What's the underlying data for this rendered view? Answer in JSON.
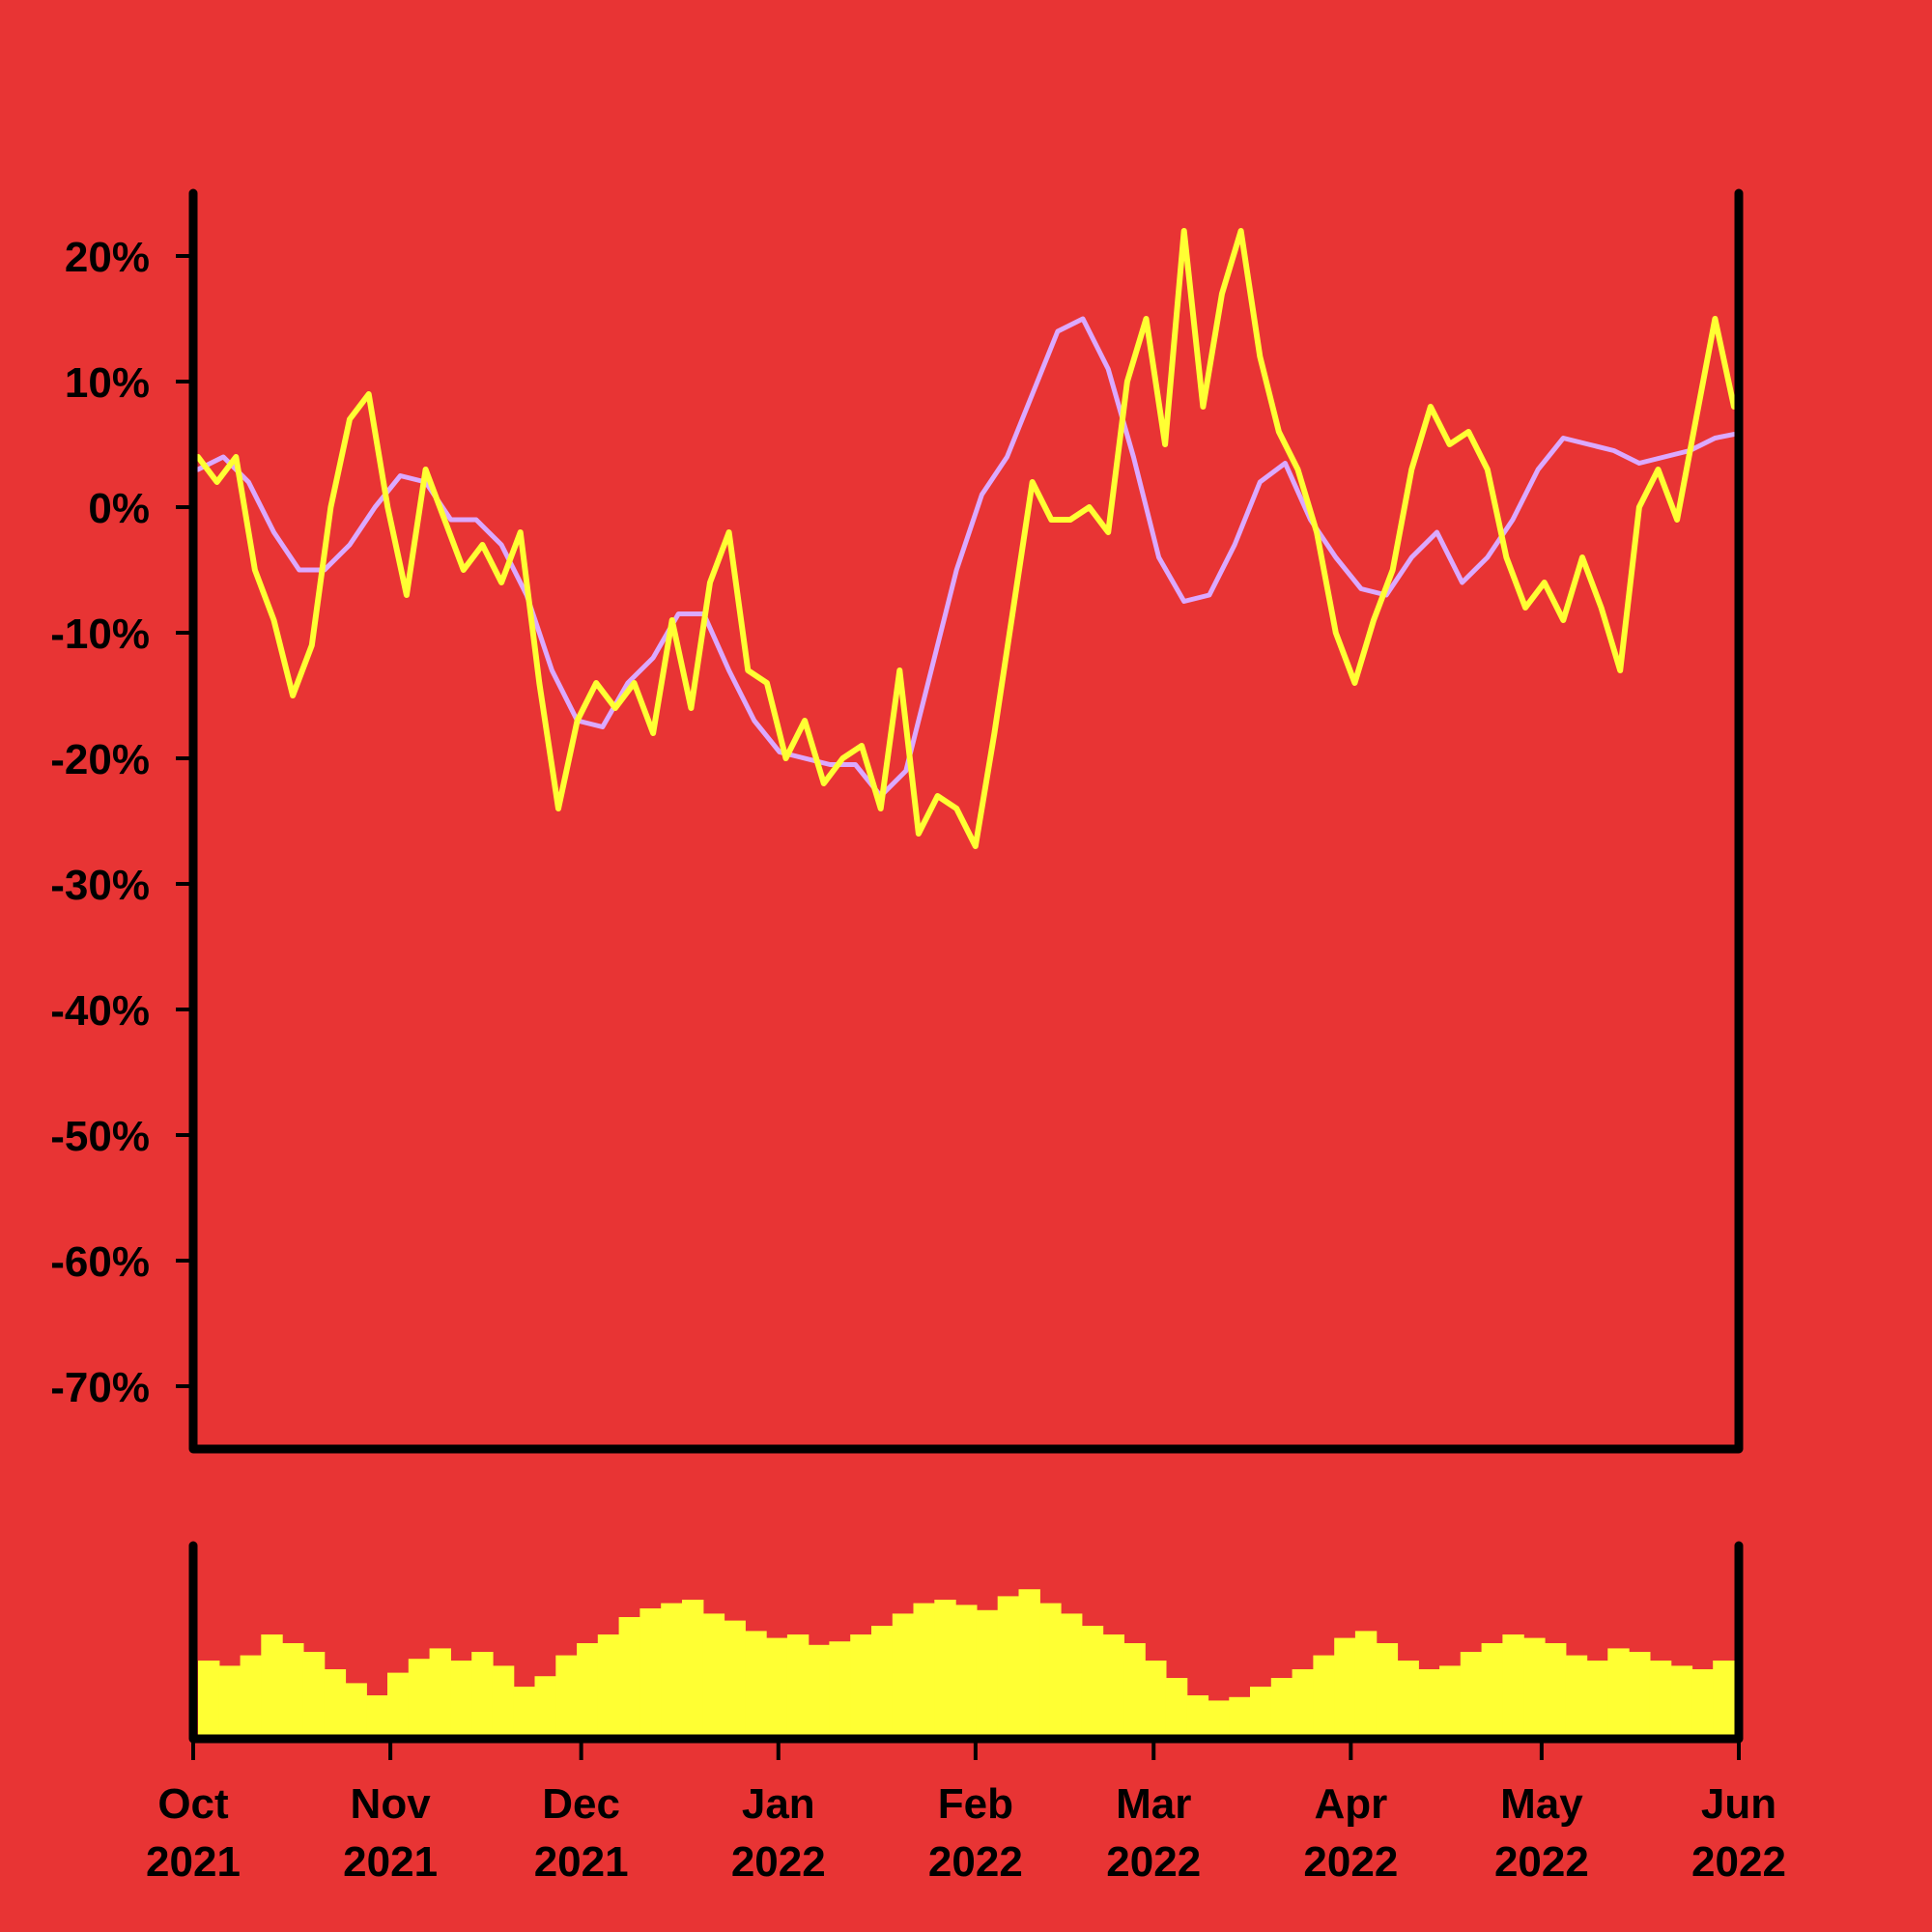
{
  "chart_data": [
    {
      "type": "line",
      "x_axis_type": "date",
      "y_format": "percent",
      "ylim": [
        -75,
        25
      ],
      "yticks": [
        20,
        10,
        0,
        -10,
        -20,
        -30,
        -40,
        -50,
        -60,
        -70
      ],
      "ytick_labels": [
        "20%",
        "10%",
        "0%",
        "-10%",
        "-20%",
        "-30%",
        "-40%",
        "-50%",
        "-60%",
        "-70%"
      ],
      "xlim": [
        "2021-10-01",
        "2022-06-01"
      ],
      "grid": false,
      "series": [
        {
          "style": "raw",
          "color": "#ffff33",
          "x": [
            "2021-10-01",
            "2021-10-04",
            "2021-10-07",
            "2021-10-10",
            "2021-10-13",
            "2021-10-16",
            "2021-10-19",
            "2021-10-22",
            "2021-10-25",
            "2021-10-28",
            "2021-10-31",
            "2021-11-03",
            "2021-11-06",
            "2021-11-09",
            "2021-11-12",
            "2021-11-15",
            "2021-11-18",
            "2021-11-21",
            "2021-11-24",
            "2021-11-27",
            "2021-11-30",
            "2021-12-03",
            "2021-12-06",
            "2021-12-09",
            "2021-12-12",
            "2021-12-15",
            "2021-12-18",
            "2021-12-21",
            "2021-12-24",
            "2021-12-27",
            "2021-12-30",
            "2022-01-02",
            "2022-01-05",
            "2022-01-08",
            "2022-01-11",
            "2022-01-14",
            "2022-01-17",
            "2022-01-20",
            "2022-01-23",
            "2022-01-26",
            "2022-01-29",
            "2022-02-01",
            "2022-02-04",
            "2022-02-07",
            "2022-02-10",
            "2022-02-13",
            "2022-02-16",
            "2022-02-19",
            "2022-02-22",
            "2022-02-25",
            "2022-02-28",
            "2022-03-03",
            "2022-03-06",
            "2022-03-09",
            "2022-03-12",
            "2022-03-15",
            "2022-03-18",
            "2022-03-21",
            "2022-03-24",
            "2022-03-27",
            "2022-03-30",
            "2022-04-02",
            "2022-04-05",
            "2022-04-08",
            "2022-04-11",
            "2022-04-14",
            "2022-04-17",
            "2022-04-20",
            "2022-04-23",
            "2022-04-26",
            "2022-04-29",
            "2022-05-02",
            "2022-05-05",
            "2022-05-08",
            "2022-05-11",
            "2022-05-14",
            "2022-05-17",
            "2022-05-20",
            "2022-05-23",
            "2022-05-26",
            "2022-05-29",
            "2022-06-01"
          ],
          "values": [
            4,
            2,
            4,
            -5,
            -9,
            -15,
            -11,
            0,
            7,
            9,
            0,
            -7,
            3,
            -1,
            -5,
            -3,
            -6,
            -2,
            -14,
            -24,
            -17,
            -14,
            -16,
            -14,
            -18,
            -9,
            -16,
            -6,
            -2,
            -13,
            -14,
            -20,
            -17,
            -22,
            -20,
            -19,
            -24,
            -13,
            -26,
            -23,
            -24,
            -27,
            -18,
            -8,
            2,
            -1,
            -1,
            0,
            -2,
            10,
            15,
            5,
            22,
            8,
            17,
            22,
            12,
            6,
            3,
            -2,
            -10,
            -14,
            -9,
            -5,
            3,
            8,
            5,
            6,
            3,
            -4,
            -8,
            -6,
            -9,
            -4,
            -8,
            -13,
            0,
            3,
            -1,
            7,
            15,
            8
          ]
        },
        {
          "style": "moving-average",
          "color": "#dba9ff",
          "x": [
            "2021-10-01",
            "2021-10-05",
            "2021-10-09",
            "2021-10-13",
            "2021-10-17",
            "2021-10-21",
            "2021-10-25",
            "2021-10-29",
            "2021-11-02",
            "2021-11-06",
            "2021-11-10",
            "2021-11-14",
            "2021-11-18",
            "2021-11-22",
            "2021-11-26",
            "2021-11-30",
            "2021-12-04",
            "2021-12-08",
            "2021-12-12",
            "2021-12-16",
            "2021-12-20",
            "2021-12-24",
            "2021-12-28",
            "2022-01-01",
            "2022-01-05",
            "2022-01-09",
            "2022-01-13",
            "2022-01-17",
            "2022-01-21",
            "2022-01-25",
            "2022-01-29",
            "2022-02-02",
            "2022-02-06",
            "2022-02-10",
            "2022-02-14",
            "2022-02-18",
            "2022-02-22",
            "2022-02-26",
            "2022-03-02",
            "2022-03-06",
            "2022-03-10",
            "2022-03-14",
            "2022-03-18",
            "2022-03-22",
            "2022-03-26",
            "2022-03-30",
            "2022-04-03",
            "2022-04-07",
            "2022-04-11",
            "2022-04-15",
            "2022-04-19",
            "2022-04-23",
            "2022-04-27",
            "2022-05-01",
            "2022-05-05",
            "2022-05-09",
            "2022-05-13",
            "2022-05-17",
            "2022-05-21",
            "2022-05-25",
            "2022-05-29",
            "2022-06-01"
          ],
          "values": [
            3,
            4,
            2,
            -2,
            -5,
            -5,
            -3,
            0,
            2.5,
            2,
            -1,
            -1,
            -3,
            -7,
            -13,
            -17,
            -17.5,
            -14,
            -12,
            -8.5,
            -8.5,
            -13,
            -17,
            -19.5,
            -20,
            -20.5,
            -20.5,
            -23,
            -21,
            -13,
            -5,
            1,
            4,
            9,
            14,
            15,
            11,
            4,
            -4,
            -7.5,
            -7,
            -3,
            2,
            3.5,
            -1,
            -4,
            -6.5,
            -7,
            -4,
            -2,
            -6,
            -4,
            -1,
            3,
            5.5,
            5,
            4.5,
            3.5,
            4,
            4.5,
            5.5,
            5.8
          ]
        }
      ]
    },
    {
      "type": "bar",
      "x_axis_type": "date",
      "color": "#ffff33",
      "xlim": [
        "2021-10-01",
        "2022-06-01"
      ],
      "xtick_labels": [
        {
          "month": "Oct",
          "year": "2021"
        },
        {
          "month": "Nov",
          "year": "2021"
        },
        {
          "month": "Dec",
          "year": "2021"
        },
        {
          "month": "Jan",
          "year": "2022"
        },
        {
          "month": "Feb",
          "year": "2022"
        },
        {
          "month": "Mar",
          "year": "2022"
        },
        {
          "month": "Apr",
          "year": "2022"
        },
        {
          "month": "May",
          "year": "2022"
        },
        {
          "month": "Jun",
          "year": "2022"
        }
      ],
      "xtick_dates": [
        "2021-10-01",
        "2021-11-01",
        "2021-12-01",
        "2022-01-01",
        "2022-02-01",
        "2022-03-01",
        "2022-04-01",
        "2022-05-01",
        "2022-06-01"
      ],
      "bar_values": [
        0.45,
        0.42,
        0.48,
        0.6,
        0.55,
        0.5,
        0.4,
        0.32,
        0.25,
        0.38,
        0.46,
        0.52,
        0.45,
        0.5,
        0.42,
        0.3,
        0.36,
        0.48,
        0.55,
        0.6,
        0.7,
        0.75,
        0.78,
        0.8,
        0.72,
        0.68,
        0.62,
        0.58,
        0.6,
        0.54,
        0.56,
        0.6,
        0.65,
        0.72,
        0.78,
        0.8,
        0.77,
        0.74,
        0.82,
        0.86,
        0.78,
        0.72,
        0.65,
        0.6,
        0.55,
        0.45,
        0.35,
        0.25,
        0.22,
        0.24,
        0.3,
        0.35,
        0.4,
        0.48,
        0.58,
        0.62,
        0.55,
        0.45,
        0.4,
        0.42,
        0.5,
        0.55,
        0.6,
        0.58,
        0.55,
        0.48,
        0.45,
        0.52,
        0.5,
        0.45,
        0.42,
        0.4,
        0.45
      ]
    }
  ]
}
